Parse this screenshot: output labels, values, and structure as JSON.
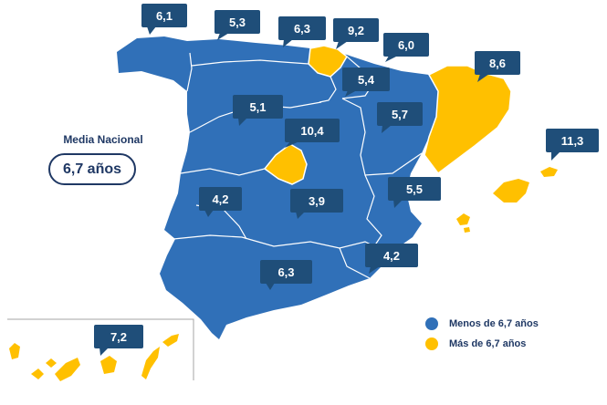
{
  "national_average": {
    "title": "Media Nacional",
    "value": "6,7 años"
  },
  "legend": [
    {
      "label": "Menos de 6,7 años",
      "color": "#3070b8"
    },
    {
      "label": "Más de 6,7 años",
      "color": "#ffc000"
    }
  ],
  "colors": {
    "callout": "#1f4e79",
    "below": "#3070b8",
    "above": "#ffc000",
    "border": "#ffffff"
  },
  "regions": [
    {
      "id": "galicia",
      "value": "6,1",
      "category": "below"
    },
    {
      "id": "asturias",
      "value": "5,3",
      "category": "below"
    },
    {
      "id": "cantabria",
      "value": "6,3",
      "category": "below"
    },
    {
      "id": "pais-vasco",
      "value": "9,2",
      "category": "above"
    },
    {
      "id": "navarra",
      "value": "6,0",
      "category": "below"
    },
    {
      "id": "la-rioja",
      "value": "5,4",
      "category": "below"
    },
    {
      "id": "aragon",
      "value": "5,7",
      "category": "below"
    },
    {
      "id": "cataluna",
      "value": "8,6",
      "category": "above"
    },
    {
      "id": "castilla-leon",
      "value": "5,1",
      "category": "below"
    },
    {
      "id": "madrid",
      "value": "10,4",
      "category": "above"
    },
    {
      "id": "baleares",
      "value": "11,3",
      "category": "above"
    },
    {
      "id": "extremadura",
      "value": "4,2",
      "category": "below"
    },
    {
      "id": "castilla-la-mancha",
      "value": "3,9",
      "category": "below"
    },
    {
      "id": "valencia",
      "value": "5,5",
      "category": "below"
    },
    {
      "id": "murcia",
      "value": "4,2",
      "category": "below"
    },
    {
      "id": "andalucia",
      "value": "6,3",
      "category": "below"
    },
    {
      "id": "canarias",
      "value": "7,2",
      "category": "above"
    }
  ]
}
